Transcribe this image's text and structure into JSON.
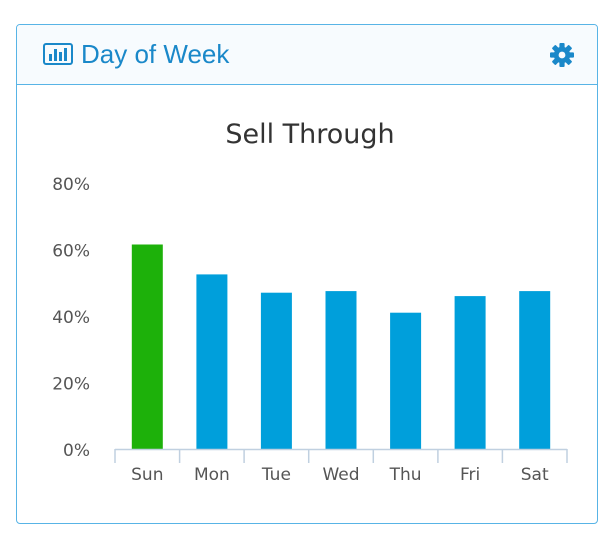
{
  "widget": {
    "title": "Day of Week",
    "header_icon": "bar-chart-icon",
    "settings_icon": "gear-icon"
  },
  "colors": {
    "accent": "#1a88c9",
    "border": "#58b4e6",
    "bar_default": "#009fdb",
    "bar_highlight": "#1db10a"
  },
  "chart_data": {
    "type": "bar",
    "title": "Sell Through",
    "xlabel": "",
    "ylabel": "",
    "categories": [
      "Sun",
      "Mon",
      "Tue",
      "Wed",
      "Thu",
      "Fri",
      "Sat"
    ],
    "values": [
      61.5,
      52.5,
      47,
      47.5,
      41,
      46,
      47.5
    ],
    "highlight_index": 0,
    "ylim": [
      0,
      80
    ],
    "yticks": [
      0,
      20,
      40,
      60,
      80
    ],
    "ytick_labels": [
      "0%",
      "20%",
      "40%",
      "60%",
      "80%"
    ],
    "grid": false,
    "legend": "none"
  }
}
